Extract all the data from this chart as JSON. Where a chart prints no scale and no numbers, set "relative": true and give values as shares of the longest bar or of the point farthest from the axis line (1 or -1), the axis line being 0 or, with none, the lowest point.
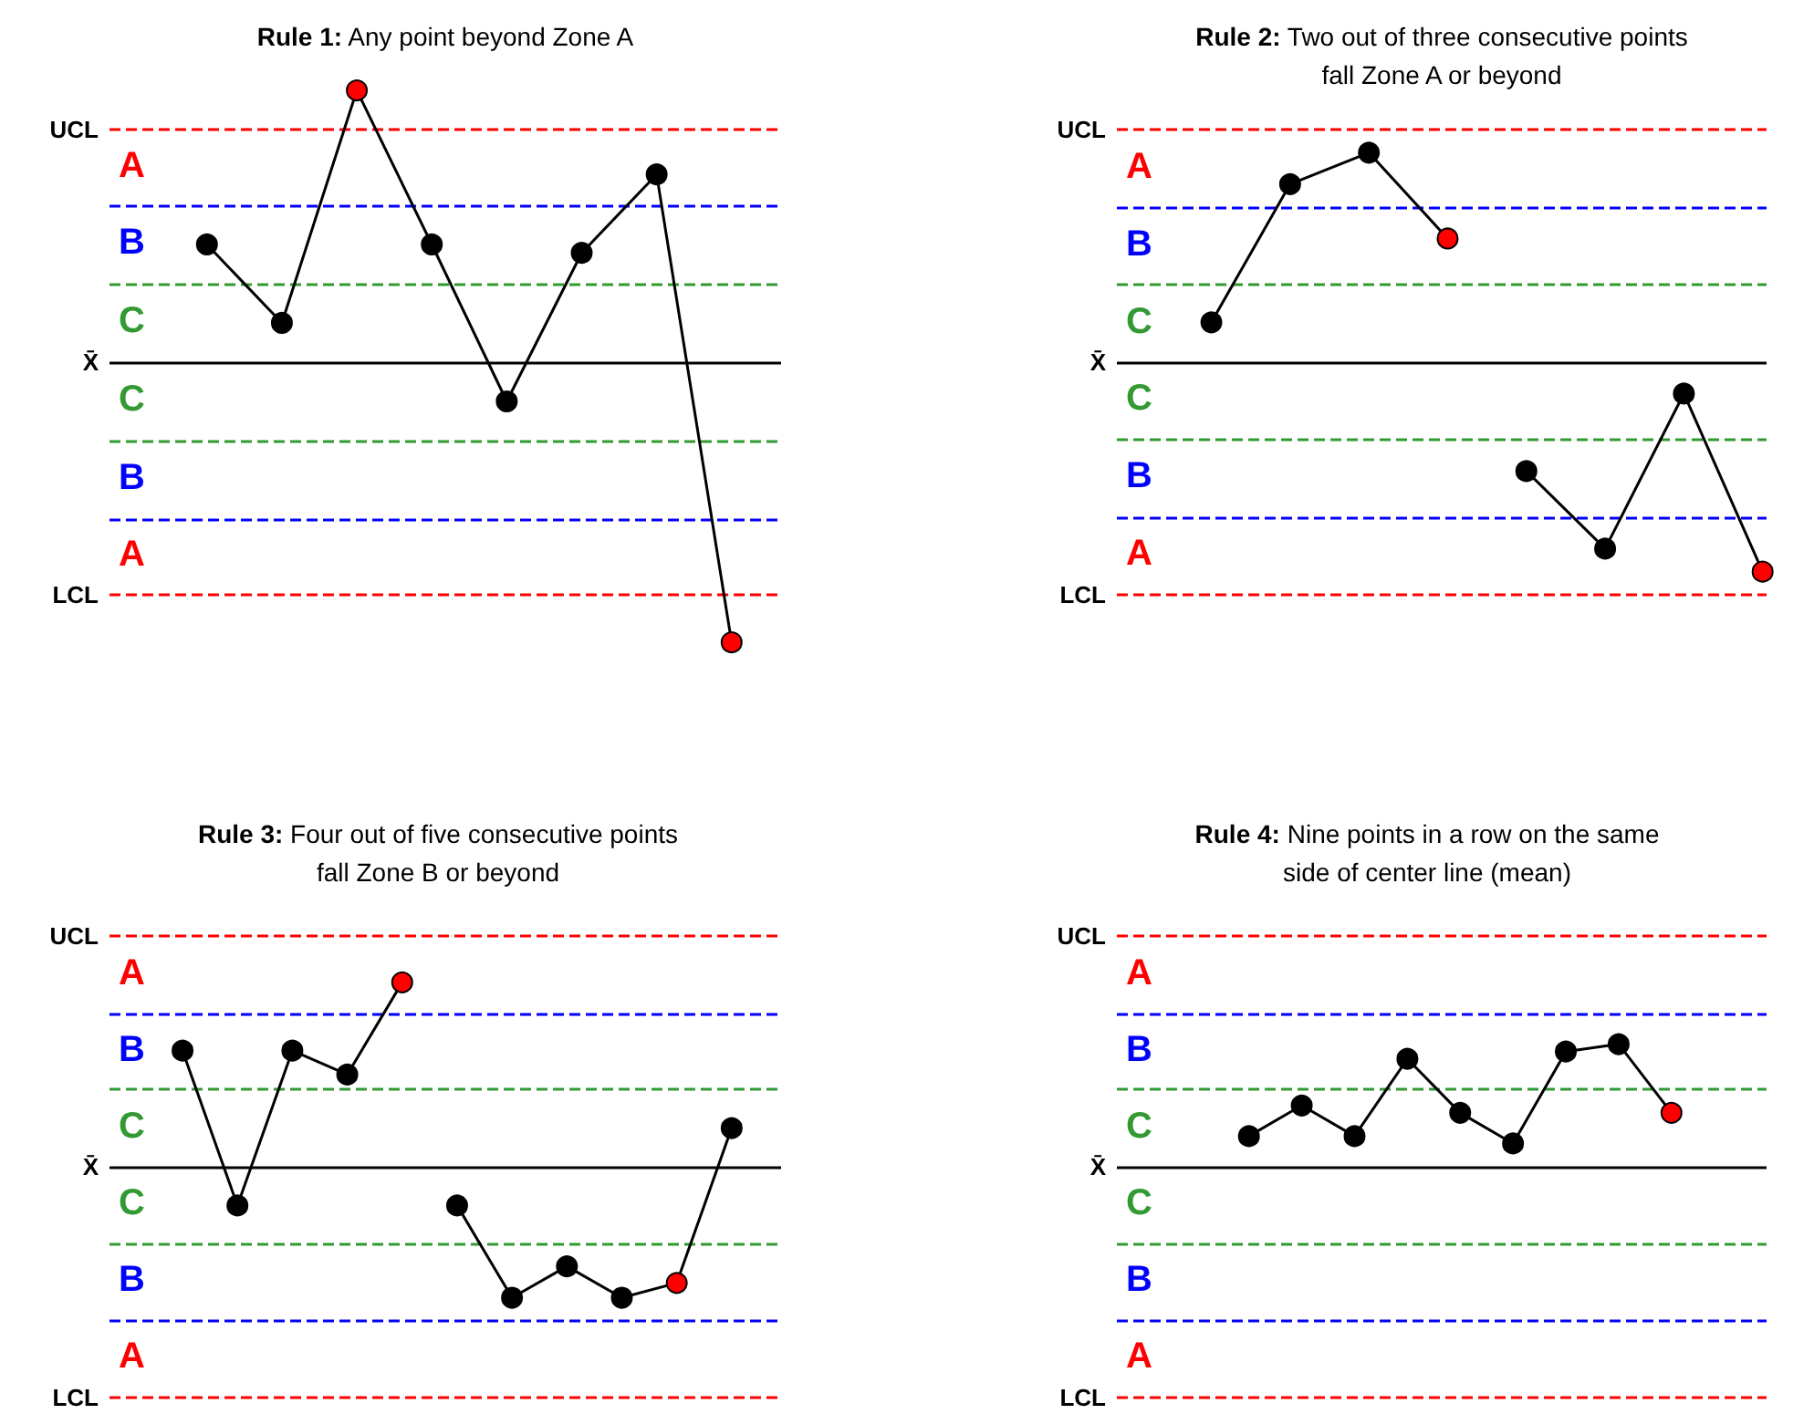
{
  "chart_data": [
    {
      "type": "line",
      "title": "Rule 1: Any point beyond Zone A",
      "categories": [
        null,
        null,
        null,
        null,
        null,
        null,
        null,
        null
      ],
      "relative": true,
      "marker": "circle",
      "line_style": "solid",
      "grid": false,
      "series": [
        {
          "color": "#000000",
          "colors": [
            "#000000",
            "#000000",
            "#ff0000",
            "#000000",
            "#000000",
            "#000000",
            "#000000",
            "#ff0000"
          ],
          "values": [
            0.42,
            0.14,
            0.97,
            0.42,
            -0.14,
            0.39,
            0.67,
            -1
          ]
        }
      ],
      "ref_lines": [
        {
          "axis": "y",
          "value": 0.83,
          "label": "UCL",
          "color": "#ff0000",
          "line_style": "dashed"
        },
        {
          "axis": "y",
          "value": 0.56,
          "color": "#0000ff",
          "line_style": "dashed"
        },
        {
          "axis": "y",
          "value": 0.28,
          "color": "#339933",
          "line_style": "dashed"
        },
        {
          "axis": "y",
          "value": 0,
          "label": "X̄",
          "color": "#000000",
          "line_style": "solid"
        },
        {
          "axis": "y",
          "value": -0.28,
          "color": "#339933",
          "line_style": "dashed"
        },
        {
          "axis": "y",
          "value": -0.56,
          "color": "#0000ff",
          "line_style": "dashed"
        },
        {
          "axis": "y",
          "value": -0.83,
          "label": "LCL",
          "color": "#ff0000",
          "line_style": "dashed"
        }
      ],
      "annotations": [
        "A",
        "B",
        "C",
        "C",
        "B",
        "A"
      ]
    },
    {
      "type": "line",
      "title": "Rule 2: Two out of three consecutive points fall Zone A or beyond",
      "categories": [
        null,
        null,
        null,
        null,
        null,
        null,
        null,
        null
      ],
      "relative": true,
      "marker": "circle",
      "line_style": "solid",
      "grid": false,
      "series": [
        {
          "color": "#000000",
          "colors": [
            "#000000",
            "#000000",
            "#000000",
            "#ff0000",
            null,
            null,
            null,
            null
          ],
          "values": [
            0.19,
            0.85,
            1,
            0.59,
            null,
            null,
            null,
            null
          ]
        },
        {
          "color": "#000000",
          "colors": [
            null,
            null,
            null,
            null,
            "#000000",
            "#000000",
            "#000000",
            "#ff0000"
          ],
          "values": [
            null,
            null,
            null,
            null,
            -0.52,
            -0.89,
            -0.15,
            -1
          ]
        }
      ],
      "ref_lines": [
        {
          "axis": "y",
          "value": 1.11,
          "label": "UCL",
          "color": "#ff0000",
          "line_style": "dashed"
        },
        {
          "axis": "y",
          "value": 0.74,
          "color": "#0000ff",
          "line_style": "dashed"
        },
        {
          "axis": "y",
          "value": 0.37,
          "color": "#339933",
          "line_style": "dashed"
        },
        {
          "axis": "y",
          "value": 0,
          "label": "X̄",
          "color": "#000000",
          "line_style": "solid"
        },
        {
          "axis": "y",
          "value": -0.37,
          "color": "#339933",
          "line_style": "dashed"
        },
        {
          "axis": "y",
          "value": -0.74,
          "color": "#0000ff",
          "line_style": "dashed"
        },
        {
          "axis": "y",
          "value": -1.11,
          "label": "LCL",
          "color": "#ff0000",
          "line_style": "dashed"
        }
      ],
      "annotations": [
        "A",
        "B",
        "C",
        "C",
        "B",
        "A"
      ]
    },
    {
      "type": "line",
      "title": "Rule 3: Four out of five consecutive points fall Zone B or beyond",
      "categories": [
        null,
        null,
        null,
        null,
        null,
        null,
        null,
        null,
        null,
        null,
        null
      ],
      "relative": true,
      "marker": "circle",
      "line_style": "solid",
      "grid": false,
      "series": [
        {
          "color": "#000000",
          "colors": [
            "#000000",
            "#000000",
            "#000000",
            "#000000",
            "#ff0000",
            null,
            null,
            null,
            null,
            null,
            null
          ],
          "values": [
            0.63,
            -0.21,
            0.63,
            0.5,
            1,
            null,
            null,
            null,
            null,
            null,
            null
          ]
        },
        {
          "color": "#000000",
          "colors": [
            null,
            null,
            null,
            null,
            null,
            "#000000",
            "#000000",
            "#000000",
            "#000000",
            "#ff0000",
            "#000000"
          ],
          "values": [
            null,
            null,
            null,
            null,
            null,
            -0.21,
            -0.71,
            -0.54,
            -0.71,
            -0.63,
            0.21
          ]
        }
      ],
      "ref_lines": [
        {
          "axis": "y",
          "value": 1.25,
          "label": "UCL",
          "color": "#ff0000",
          "line_style": "dashed"
        },
        {
          "axis": "y",
          "value": 0.83,
          "color": "#0000ff",
          "line_style": "dashed"
        },
        {
          "axis": "y",
          "value": 0.42,
          "color": "#339933",
          "line_style": "dashed"
        },
        {
          "axis": "y",
          "value": 0,
          "label": "X̄",
          "color": "#000000",
          "line_style": "solid"
        },
        {
          "axis": "y",
          "value": -0.42,
          "color": "#339933",
          "line_style": "dashed"
        },
        {
          "axis": "y",
          "value": -0.83,
          "color": "#0000ff",
          "line_style": "dashed"
        },
        {
          "axis": "y",
          "value": -1.25,
          "label": "LCL",
          "color": "#ff0000",
          "line_style": "dashed"
        }
      ],
      "annotations": [
        "A",
        "B",
        "C",
        "C",
        "B",
        "A"
      ]
    },
    {
      "type": "line",
      "title": "Rule 4: Nine points in a row on the same side of center line (mean)",
      "categories": [
        null,
        null,
        null,
        null,
        null,
        null,
        null,
        null,
        null
      ],
      "relative": true,
      "marker": "circle",
      "line_style": "solid",
      "grid": false,
      "series": [
        {
          "color": "#000000",
          "colors": [
            "#000000",
            "#000000",
            "#000000",
            "#000000",
            "#000000",
            "#000000",
            "#000000",
            "#000000",
            "#ff0000"
          ],
          "values": [
            0.25,
            0.5,
            0.25,
            0.88,
            0.44,
            0.19,
            0.94,
            1,
            0.44
          ]
        }
      ],
      "ref_lines": [
        {
          "axis": "y",
          "value": 1.88,
          "label": "UCL",
          "color": "#ff0000",
          "line_style": "dashed"
        },
        {
          "axis": "y",
          "value": 1.25,
          "color": "#0000ff",
          "line_style": "dashed"
        },
        {
          "axis": "y",
          "value": 0.63,
          "color": "#339933",
          "line_style": "dashed"
        },
        {
          "axis": "y",
          "value": 0,
          "label": "X̄",
          "color": "#000000",
          "line_style": "solid"
        },
        {
          "axis": "y",
          "value": -0.63,
          "color": "#339933",
          "line_style": "dashed"
        },
        {
          "axis": "y",
          "value": -1.25,
          "color": "#0000ff",
          "line_style": "dashed"
        },
        {
          "axis": "y",
          "value": -1.88,
          "label": "LCL",
          "color": "#ff0000",
          "line_style": "dashed"
        }
      ],
      "annotations": [
        "A",
        "B",
        "C",
        "C",
        "B",
        "A"
      ]
    }
  ]
}
